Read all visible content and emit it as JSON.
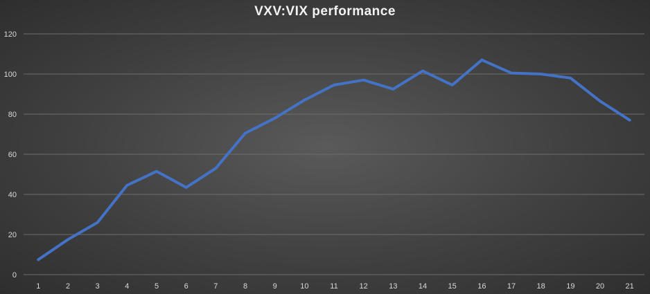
{
  "chart_data": {
    "type": "line",
    "title": "VXV:VIX  performance",
    "xlabel": "",
    "ylabel": "",
    "categories": [
      "1",
      "2",
      "3",
      "4",
      "5",
      "6",
      "7",
      "8",
      "9",
      "10",
      "11",
      "12",
      "13",
      "14",
      "15",
      "16",
      "17",
      "18",
      "19",
      "20",
      "21"
    ],
    "series": [
      {
        "values": [
          7.5,
          17.5,
          26,
          44.5,
          51.5,
          43.5,
          53,
          70.5,
          78,
          87,
          94.5,
          97,
          92.5,
          101.5,
          94.5,
          107,
          100.5,
          100,
          98,
          86.5,
          77
        ],
        "color": "#4472c4"
      }
    ],
    "ylim": [
      0,
      120
    ],
    "yticks": [
      0,
      20,
      40,
      60,
      80,
      100,
      120
    ],
    "grid": true,
    "legend": "none"
  }
}
